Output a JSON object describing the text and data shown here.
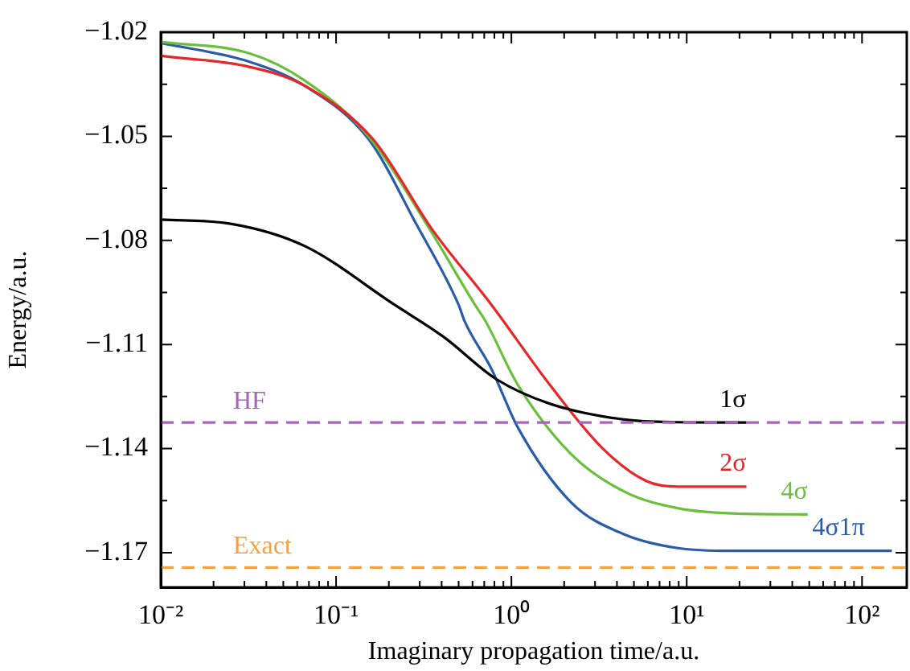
{
  "chart_data": {
    "type": "line",
    "xlabel": "Imaginary propagation time/a.u.",
    "ylabel": "Energy/a.u.",
    "log": "x",
    "xlim": [
      0.01,
      180
    ],
    "xticks": [
      {
        "value": 0.01,
        "label": "10⁻²"
      },
      {
        "value": 0.02,
        "label": null
      },
      {
        "value": 0.03,
        "label": null
      },
      {
        "value": 0.04,
        "label": null
      },
      {
        "value": 0.05,
        "label": null
      },
      {
        "value": 0.06,
        "label": null
      },
      {
        "value": 0.07,
        "label": null
      },
      {
        "value": 0.08,
        "label": null
      },
      {
        "value": 0.09,
        "label": null
      },
      {
        "value": 0.1,
        "label": "10⁻¹"
      },
      {
        "value": 0.2,
        "label": null
      },
      {
        "value": 0.3,
        "label": null
      },
      {
        "value": 0.4,
        "label": null
      },
      {
        "value": 0.5,
        "label": null
      },
      {
        "value": 0.6,
        "label": null
      },
      {
        "value": 0.7,
        "label": null
      },
      {
        "value": 0.8,
        "label": null
      },
      {
        "value": 0.9,
        "label": null
      },
      {
        "value": 1,
        "label": "10⁰"
      },
      {
        "value": 2,
        "label": null
      },
      {
        "value": 3,
        "label": null
      },
      {
        "value": 4,
        "label": null
      },
      {
        "value": 5,
        "label": null
      },
      {
        "value": 6,
        "label": null
      },
      {
        "value": 7,
        "label": null
      },
      {
        "value": 8,
        "label": null
      },
      {
        "value": 9,
        "label": null
      },
      {
        "value": 10,
        "label": "10¹"
      },
      {
        "value": 20,
        "label": null
      },
      {
        "value": 30,
        "label": null
      },
      {
        "value": 40,
        "label": null
      },
      {
        "value": 50,
        "label": null
      },
      {
        "value": 60,
        "label": null
      },
      {
        "value": 70,
        "label": null
      },
      {
        "value": 80,
        "label": null
      },
      {
        "value": 90,
        "label": null
      },
      {
        "value": 100,
        "label": "10²"
      }
    ],
    "ylim": [
      -1.18,
      -1.02
    ],
    "yticks": [
      {
        "value": -1.02,
        "label": "−1.02"
      },
      {
        "value": -1.035,
        "label": null
      },
      {
        "value": -1.05,
        "label": "−1.05"
      },
      {
        "value": -1.065,
        "label": null
      },
      {
        "value": -1.08,
        "label": "−1.08"
      },
      {
        "value": -1.095,
        "label": null
      },
      {
        "value": -1.11,
        "label": "−1.11"
      },
      {
        "value": -1.125,
        "label": null
      },
      {
        "value": -1.14,
        "label": "−1.14"
      },
      {
        "value": -1.155,
        "label": null
      },
      {
        "value": -1.17,
        "label": "−1.17"
      }
    ],
    "grid": false,
    "legend": false,
    "series": [
      {
        "name": "1σ",
        "color": "#000000",
        "x": [
          0.01,
          0.025,
          0.066,
          0.216,
          0.41,
          0.82,
          1.66,
          4.47,
          8.9,
          21.9
        ],
        "values": [
          -1.074,
          -1.0752,
          -1.0816,
          -1.0986,
          -1.1078,
          -1.12,
          -1.1271,
          -1.1317,
          -1.1324,
          -1.1325
        ]
      },
      {
        "name": "2σ",
        "color": "#e8262a",
        "x": [
          0.01,
          0.032,
          0.066,
          0.162,
          0.355,
          0.77,
          1.66,
          3.35,
          5.9,
          8.9,
          21.9
        ],
        "values": [
          -1.0268,
          -1.03,
          -1.0354,
          -1.0508,
          -1.077,
          -1.0986,
          -1.1217,
          -1.1402,
          -1.1494,
          -1.151,
          -1.151
        ]
      },
      {
        "name": "4σ",
        "color": "#6abf3c",
        "x": [
          0.01,
          0.032,
          0.066,
          0.153,
          0.33,
          0.62,
          0.71,
          1.09,
          2.2,
          4.44,
          8.9,
          18.1,
          49
        ],
        "values": [
          -1.0228,
          -1.0261,
          -1.0339,
          -1.05,
          -1.0755,
          -1.0986,
          -1.1032,
          -1.1217,
          -1.1417,
          -1.1525,
          -1.1572,
          -1.1587,
          -1.159
        ]
      },
      {
        "name": "4σ1π",
        "color": "#2a5caa",
        "x": [
          0.01,
          0.032,
          0.066,
          0.153,
          0.288,
          0.5,
          0.54,
          0.77,
          1.09,
          2.2,
          4.44,
          8.9,
          18.1,
          148
        ],
        "values": [
          -1.0231,
          -1.0285,
          -1.0354,
          -1.0508,
          -1.0755,
          -1.0986,
          -1.1032,
          -1.1171,
          -1.134,
          -1.1556,
          -1.1648,
          -1.1687,
          -1.1695,
          -1.1695
        ]
      }
    ],
    "ref_lines": [
      {
        "axis": "y",
        "value": -1.1325,
        "label": "HF",
        "color": "#a665b8",
        "line_style": "dashed"
      },
      {
        "axis": "y",
        "value": -1.1743,
        "label": "Exact",
        "color": "#f7a040",
        "line_style": "dashed"
      }
    ]
  }
}
